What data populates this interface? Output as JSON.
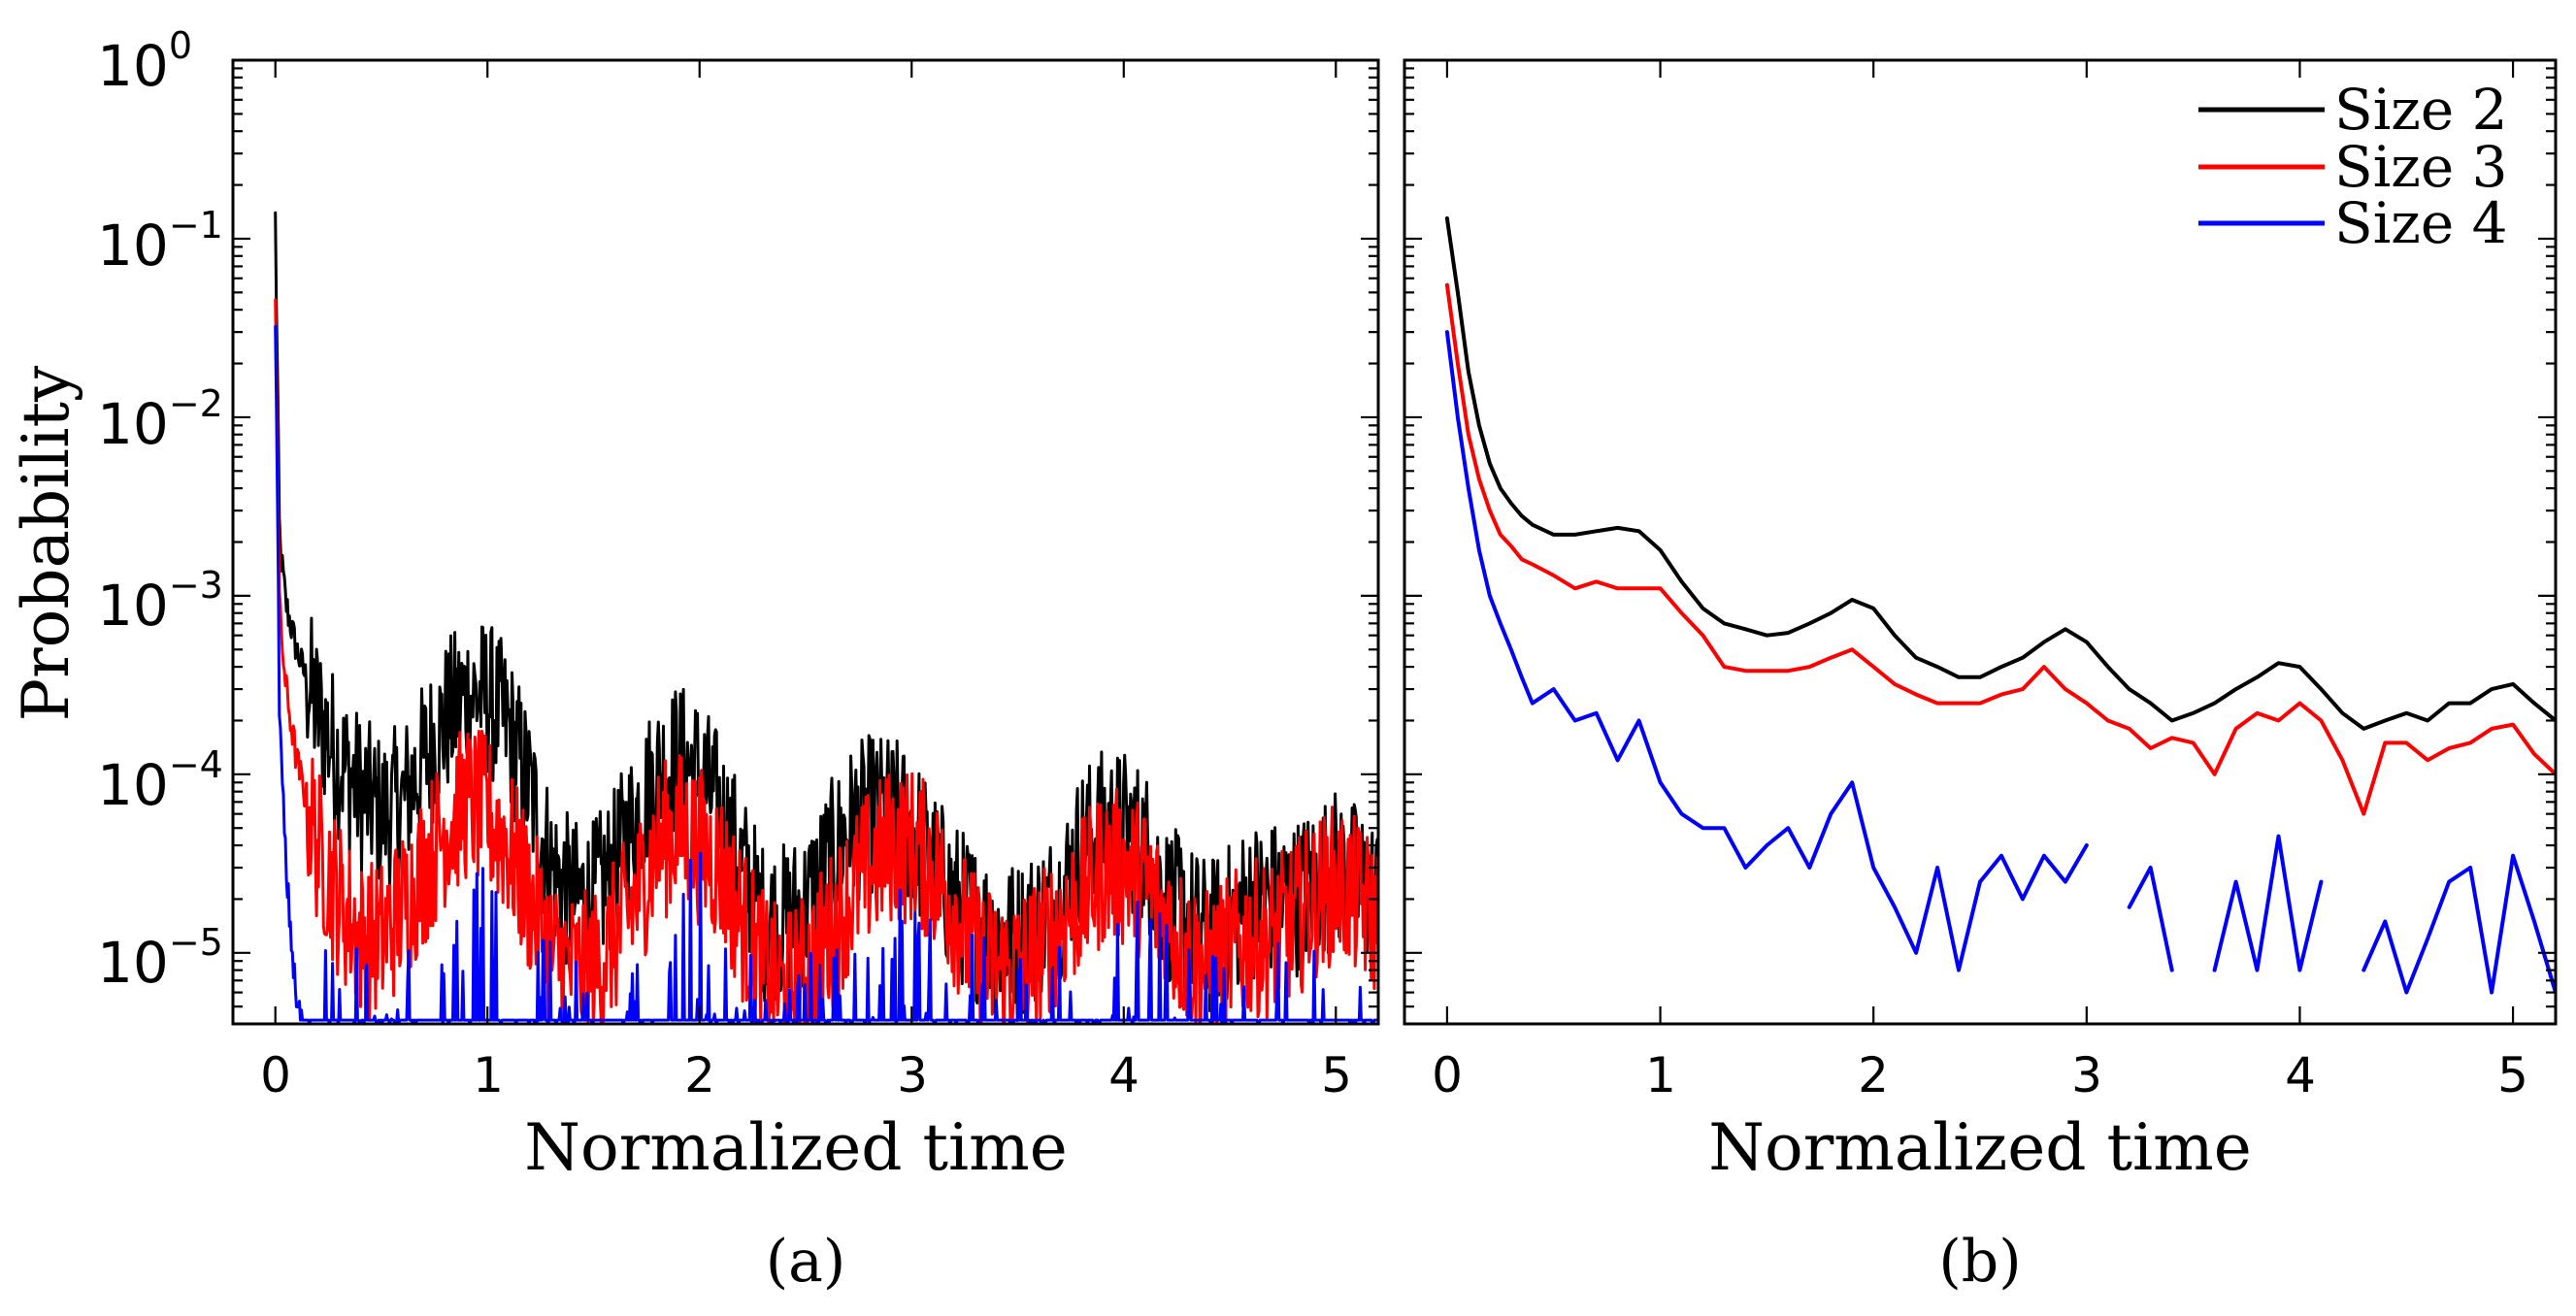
{
  "chart_data": [
    {
      "panel": "a",
      "panel_label": "(a)",
      "type": "line",
      "title": "",
      "xlabel": "Normalized time",
      "ylabel": "Probability",
      "yscale": "log",
      "xlim": [
        -0.2,
        5.2
      ],
      "ylim": [
        4e-06,
        1
      ],
      "xticks": [
        0,
        1,
        2,
        3,
        4,
        5
      ],
      "xtick_labels": [
        "0",
        "1",
        "2",
        "3",
        "4",
        "5"
      ],
      "yticks": [
        {
          "value": 1e-05,
          "base": "10",
          "exp": "−5"
        },
        {
          "value": 0.0001,
          "base": "10",
          "exp": "−4"
        },
        {
          "value": 0.001,
          "base": "10",
          "exp": "−3"
        },
        {
          "value": 0.01,
          "base": "10",
          "exp": "−2"
        },
        {
          "value": 0.1,
          "base": "10",
          "exp": "−1"
        },
        {
          "value": 1,
          "base": "10",
          "exp": "0"
        }
      ],
      "grid": false,
      "noise": true,
      "series": [
        {
          "name": "Size 2",
          "color": "#000000",
          "x": [
            0,
            0.02,
            0.05,
            0.1,
            0.2,
            0.3,
            0.4,
            0.5,
            0.6,
            0.7,
            0.8,
            0.9,
            1.0,
            1.1,
            1.2,
            1.3,
            1.4,
            1.5,
            1.6,
            1.7,
            1.8,
            1.9,
            2.0,
            2.1,
            2.2,
            2.3,
            2.4,
            2.5,
            2.6,
            2.7,
            2.8,
            2.9,
            3.0,
            3.1,
            3.2,
            3.3,
            3.4,
            3.5,
            3.6,
            3.7,
            3.8,
            3.9,
            4.0,
            4.1,
            4.2,
            4.3,
            4.4,
            4.5,
            4.6,
            4.7,
            4.8,
            4.9,
            5.0,
            5.1,
            5.2
          ],
          "y": [
            0.13,
            0.002,
            0.0009,
            0.0005,
            0.00022,
            0.00012,
            8e-05,
            6e-05,
            7e-05,
            0.00012,
            0.0002,
            0.00028,
            0.00027,
            0.00018,
            8e-05,
            3e-05,
            2e-05,
            2e-05,
            3e-05,
            6e-05,
            0.0001,
            0.00012,
            0.0001,
            6e-05,
            3e-05,
            1.5e-05,
            1.5e-05,
            1.8e-05,
            3e-05,
            5e-05,
            6e-05,
            6e-05,
            5e-05,
            3e-05,
            2e-05,
            1.5e-05,
            1.2e-05,
            1.2e-05,
            1.5e-05,
            2e-05,
            4e-05,
            5e-05,
            5e-05,
            4e-05,
            2e-05,
            1.5e-05,
            1.2e-05,
            1.5e-05,
            2e-05,
            2e-05,
            2e-05,
            2.5e-05,
            3e-05,
            2.5e-05,
            2e-05
          ]
        },
        {
          "name": "Size 3",
          "color": "#ff0000",
          "x": [
            0,
            0.02,
            0.05,
            0.1,
            0.2,
            0.3,
            0.4,
            0.5,
            0.6,
            0.7,
            0.8,
            0.9,
            1.0,
            1.1,
            1.2,
            1.3,
            1.4,
            1.5,
            1.6,
            1.7,
            1.8,
            1.9,
            2.0,
            2.1,
            2.2,
            2.3,
            2.4,
            2.5,
            2.6,
            2.7,
            2.8,
            2.9,
            3.0,
            3.1,
            3.2,
            3.3,
            3.4,
            3.5,
            3.6,
            3.7,
            3.8,
            3.9,
            4.0,
            4.1,
            4.2,
            4.3,
            4.4,
            4.5,
            4.6,
            4.7,
            4.8,
            4.9,
            5.0,
            5.1,
            5.2
          ],
          "y": [
            0.055,
            0.0008,
            0.0003,
            0.00012,
            4e-05,
            2e-05,
            1.2e-05,
            1.2e-05,
            1.8e-05,
            3e-05,
            5e-05,
            7e-05,
            6e-05,
            4e-05,
            2e-05,
            1e-05,
            8e-06,
            8e-06,
            1.2e-05,
            2e-05,
            4e-05,
            5e-05,
            4e-05,
            3e-05,
            1.5e-05,
            8e-06,
            6e-06,
            8e-06,
            1.2e-05,
            2e-05,
            3e-05,
            4e-05,
            4e-05,
            3e-05,
            1.8e-05,
            1e-05,
            8e-06,
            8e-06,
            1e-05,
            1.5e-05,
            2e-05,
            3e-05,
            3e-05,
            2.5e-05,
            1.5e-05,
            1e-05,
            8e-06,
            1e-05,
            1.2e-05,
            1.2e-05,
            1.5e-05,
            2e-05,
            2.5e-05,
            2e-05,
            1.5e-05
          ]
        },
        {
          "name": "Size 4",
          "color": "#0000ff",
          "x": [
            0,
            0.02,
            0.05,
            0.08,
            0.1,
            0.15,
            0.2,
            0.5,
            0.8,
            0.9,
            1.0,
            1.1,
            1.5,
            1.8,
            1.9,
            2.0,
            2.1,
            2.5,
            2.8,
            2.9,
            3.0,
            3.5,
            3.9,
            4.0,
            4.1,
            4.5,
            5.0,
            5.2
          ],
          "y": [
            0.04,
            0.0002,
            3e-05,
            1e-05,
            5e-06,
            4e-06,
            4e-06,
            4e-06,
            4e-06,
            1e-05,
            1.2e-05,
            5e-06,
            4e-06,
            4e-06,
            1.2e-05,
            1.5e-05,
            5e-06,
            4e-06,
            4e-06,
            8e-06,
            8e-06,
            4e-06,
            4e-06,
            8e-06,
            8e-06,
            4e-06,
            4e-06,
            4e-06
          ]
        }
      ]
    },
    {
      "panel": "b",
      "panel_label": "(b)",
      "type": "line",
      "title": "",
      "xlabel": "Normalized time",
      "ylabel": "",
      "yscale": "log",
      "xlim": [
        -0.2,
        5.2
      ],
      "ylim": [
        4e-06,
        1
      ],
      "xticks": [
        0,
        1,
        2,
        3,
        4,
        5
      ],
      "xtick_labels": [
        "0",
        "1",
        "2",
        "3",
        "4",
        "5"
      ],
      "grid": false,
      "noise": false,
      "legend": {
        "position": "top-right",
        "entries": [
          "Size 2",
          "Size 3",
          "Size 4"
        ]
      },
      "series": [
        {
          "name": "Size 2",
          "color": "#000000",
          "x": [
            0,
            0.05,
            0.1,
            0.15,
            0.2,
            0.25,
            0.3,
            0.35,
            0.4,
            0.5,
            0.6,
            0.7,
            0.8,
            0.9,
            1.0,
            1.1,
            1.2,
            1.3,
            1.4,
            1.5,
            1.6,
            1.7,
            1.8,
            1.9,
            2.0,
            2.1,
            2.2,
            2.3,
            2.4,
            2.5,
            2.6,
            2.7,
            2.8,
            2.9,
            3.0,
            3.1,
            3.2,
            3.3,
            3.4,
            3.5,
            3.6,
            3.7,
            3.8,
            3.9,
            4.0,
            4.1,
            4.2,
            4.3,
            4.4,
            4.5,
            4.6,
            4.7,
            4.8,
            4.9,
            5.0,
            5.1,
            5.2
          ],
          "y": [
            0.13,
            0.05,
            0.018,
            0.009,
            0.0055,
            0.004,
            0.0033,
            0.0028,
            0.0025,
            0.0022,
            0.0022,
            0.0023,
            0.0024,
            0.0023,
            0.0018,
            0.0012,
            0.00085,
            0.0007,
            0.00065,
            0.0006,
            0.00062,
            0.0007,
            0.0008,
            0.00095,
            0.00085,
            0.0006,
            0.00045,
            0.0004,
            0.00035,
            0.00035,
            0.0004,
            0.00045,
            0.00055,
            0.00065,
            0.00055,
            0.0004,
            0.0003,
            0.00025,
            0.0002,
            0.00022,
            0.00025,
            0.0003,
            0.00035,
            0.00042,
            0.0004,
            0.0003,
            0.00022,
            0.00018,
            0.0002,
            0.00022,
            0.0002,
            0.00025,
            0.00025,
            0.0003,
            0.00032,
            0.00025,
            0.0002
          ]
        },
        {
          "name": "Size 3",
          "color": "#ff0000",
          "x": [
            0,
            0.05,
            0.1,
            0.15,
            0.2,
            0.25,
            0.3,
            0.35,
            0.4,
            0.5,
            0.6,
            0.7,
            0.8,
            0.9,
            1.0,
            1.1,
            1.2,
            1.3,
            1.4,
            1.5,
            1.6,
            1.7,
            1.8,
            1.9,
            2.0,
            2.1,
            2.2,
            2.3,
            2.4,
            2.5,
            2.6,
            2.7,
            2.8,
            2.9,
            3.0,
            3.1,
            3.2,
            3.3,
            3.4,
            3.5,
            3.6,
            3.7,
            3.8,
            3.9,
            4.0,
            4.1,
            4.2,
            4.3,
            4.4,
            4.5,
            4.6,
            4.7,
            4.8,
            4.9,
            5.0,
            5.1,
            5.2
          ],
          "y": [
            0.055,
            0.02,
            0.008,
            0.0045,
            0.003,
            0.0022,
            0.0019,
            0.0016,
            0.0015,
            0.0013,
            0.0011,
            0.0012,
            0.0011,
            0.0011,
            0.0011,
            0.0008,
            0.0006,
            0.0004,
            0.00038,
            0.00038,
            0.00038,
            0.0004,
            0.00045,
            0.0005,
            0.0004,
            0.00032,
            0.00028,
            0.00025,
            0.00025,
            0.00025,
            0.00028,
            0.0003,
            0.0004,
            0.0003,
            0.00025,
            0.0002,
            0.00018,
            0.00014,
            0.00016,
            0.00015,
            0.0001,
            0.00018,
            0.00022,
            0.0002,
            0.00025,
            0.0002,
            0.00012,
            6e-05,
            0.00015,
            0.00015,
            0.00012,
            0.00014,
            0.00015,
            0.00018,
            0.00019,
            0.00013,
            0.0001
          ]
        },
        {
          "name": "Size 4",
          "color": "#0000ff",
          "x": [
            0,
            0.05,
            0.1,
            0.15,
            0.2,
            0.25,
            0.3,
            0.35,
            0.4,
            0.5,
            0.6,
            0.7,
            0.8,
            0.9,
            1.0,
            1.1,
            1.2,
            1.3,
            1.4,
            1.5,
            1.6,
            1.7,
            1.8,
            1.9,
            2.0,
            2.1,
            2.2,
            2.3,
            2.4,
            2.5,
            2.6,
            2.7,
            2.8,
            2.9,
            3.0,
            3.1,
            3.2,
            3.3,
            3.4,
            3.5,
            3.6,
            3.7,
            3.8,
            3.9,
            4.0,
            4.1,
            4.2,
            4.3,
            4.4,
            4.5,
            4.6,
            4.7,
            4.8,
            4.9,
            5.0,
            5.1,
            5.2
          ],
          "y": [
            0.03,
            0.01,
            0.004,
            0.0018,
            0.001,
            0.0007,
            0.0005,
            0.00035,
            0.00025,
            0.0003,
            0.0002,
            0.00022,
            0.00012,
            0.0002,
            9e-05,
            6e-05,
            5e-05,
            5e-05,
            3e-05,
            4e-05,
            5e-05,
            3e-05,
            6e-05,
            9e-05,
            3e-05,
            1.8e-05,
            1e-05,
            3e-05,
            8e-06,
            2.5e-05,
            3.5e-05,
            2e-05,
            3.5e-05,
            2.5e-05,
            4e-05,
            null,
            1.8e-05,
            3e-05,
            8e-06,
            null,
            8e-06,
            2.5e-05,
            8e-06,
            4.5e-05,
            8e-06,
            2.5e-05,
            null,
            8e-06,
            1.5e-05,
            6e-06,
            1.2e-05,
            2.5e-05,
            3e-05,
            6e-06,
            3.5e-05,
            1.5e-05,
            6e-06
          ]
        }
      ]
    }
  ]
}
